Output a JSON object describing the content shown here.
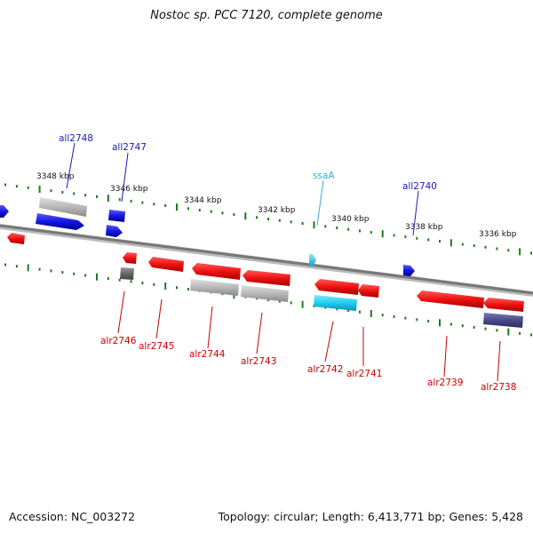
{
  "title": "Nostoc sp. PCC 7120, complete genome",
  "footer": {
    "accession": "Accession: NC_003272",
    "stats": "Topology: circular; Length: 6,413,771 bp; Genes: 5,428"
  },
  "colors": {
    "backbone": "#888888",
    "tick": "#1f7a1f",
    "forward_label": "#1a1ab8",
    "reverse_label": "#cc0000",
    "highlight_label": "#3aaed8",
    "red_gene": "#ee1111",
    "blue_gene": "#1515e0",
    "grey_gene": "#b8b8b8",
    "cyan_gene": "#22ccee",
    "dark_grey_gene": "#666666",
    "navy_gene": "#4a4a8a"
  },
  "scale_labels": [
    "3348 kbp",
    "3346 kbp",
    "3344 kbp",
    "3342 kbp",
    "3340 kbp",
    "3338 kbp",
    "3336 kbp"
  ],
  "gene_labels": {
    "all2748": "all2748",
    "all2747": "all2747",
    "ssaA": "ssaA",
    "all2740": "all2740",
    "alr2746": "alr2746",
    "alr2745": "alr2745",
    "alr2744": "alr2744",
    "alr2743": "alr2743",
    "alr2742": "alr2742",
    "alr2741": "alr2741",
    "alr2739": "alr2739",
    "alr2738": "alr2738"
  }
}
